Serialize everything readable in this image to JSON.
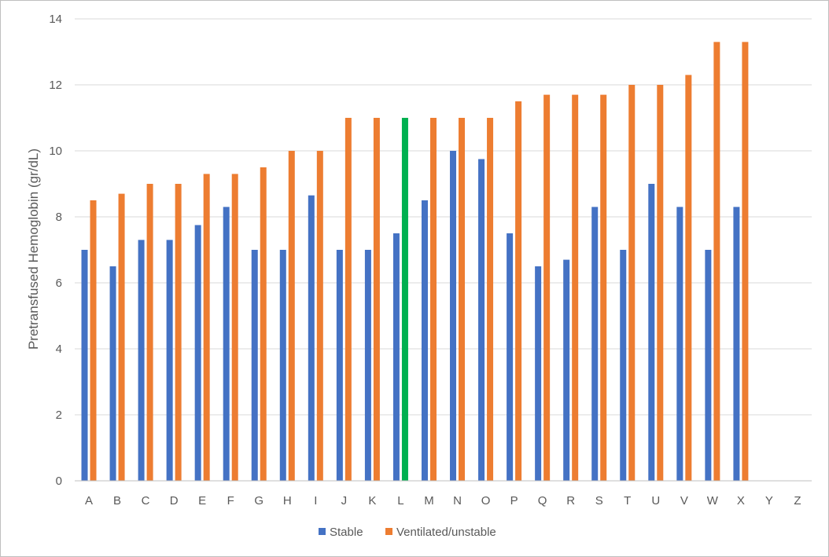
{
  "chart_data": {
    "type": "bar",
    "title": "",
    "xlabel": "",
    "ylabel": "Pretransfused Hemoglobin (gr/dL)",
    "ylim": [
      0,
      14
    ],
    "yticks": [
      "0",
      "2",
      "4",
      "6",
      "8",
      "10",
      "12",
      "14"
    ],
    "grid": true,
    "legend_position": "bottom",
    "categories": [
      "A",
      "B",
      "C",
      "D",
      "E",
      "F",
      "G",
      "H",
      "I",
      "J",
      "K",
      "L",
      "M",
      "N",
      "O",
      "P",
      "Q",
      "R",
      "S",
      "T",
      "U",
      "V",
      "W",
      "X",
      "Y",
      "Z"
    ],
    "series": [
      {
        "name": "Stable",
        "color": "#4472c4",
        "values": [
          7.0,
          6.5,
          7.3,
          7.3,
          7.75,
          8.3,
          7.0,
          7.0,
          8.65,
          7.0,
          7.0,
          7.5,
          8.5,
          10.0,
          9.75,
          7.5,
          6.5,
          6.7,
          8.3,
          7.0,
          9.0,
          8.3,
          7.0,
          8.3,
          null,
          null
        ]
      },
      {
        "name": "Ventilated/unstable",
        "color": "#ed7d31",
        "values": [
          8.5,
          8.7,
          9.0,
          9.0,
          9.3,
          9.3,
          9.5,
          10.0,
          10.0,
          11.0,
          11.0,
          11.0,
          11.0,
          11.0,
          11.0,
          11.5,
          11.7,
          11.7,
          11.7,
          12.0,
          12.0,
          12.3,
          13.3,
          13.3,
          null,
          null
        ]
      }
    ],
    "highlight": {
      "category": "L",
      "series": 1,
      "color": "#00b050"
    }
  }
}
